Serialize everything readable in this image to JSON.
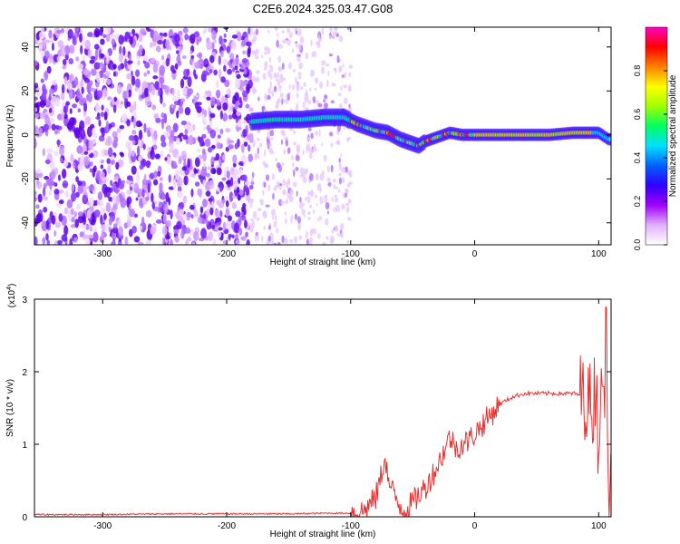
{
  "chart_data": [
    {
      "type": "heatmap",
      "title": "C2E6.2024.325.03.47.G08",
      "xlabel": "Height of straight line (km)",
      "ylabel": "Frequency (Hz)",
      "xlim": [
        -355,
        110
      ],
      "ylim": [
        -50,
        49
      ],
      "x_ticks": [
        "-300",
        "-200",
        "-100",
        "0",
        "100"
      ],
      "y_ticks": [
        "-40",
        "-20",
        "0",
        "20",
        "40"
      ],
      "colorbar": {
        "label": "Normalized spectral amplitude",
        "range": [
          0,
          1
        ],
        "ticks": [
          "0.0",
          "0.2",
          "0.4",
          "0.6",
          "0.8"
        ],
        "colors": [
          "#ffffff",
          "#e0b0ff",
          "#a000ff",
          "#3000ff",
          "#0060ff",
          "#00e0ff",
          "#00ff60",
          "#a0ff00",
          "#ffff00",
          "#ff8000",
          "#ff0000",
          "#ff00c0"
        ]
      },
      "ridge": {
        "x": [
          -180,
          -160,
          -140,
          -120,
          -105,
          -95,
          -80,
          -70,
          -60,
          -50,
          -45,
          -40,
          -30,
          -20,
          -10,
          0,
          20,
          40,
          60,
          80,
          100,
          108
        ],
        "y": [
          6,
          7,
          7,
          8,
          8,
          5,
          2,
          1,
          -2,
          -4,
          -5,
          -3,
          -1,
          1,
          0,
          0,
          0,
          0,
          0,
          1,
          1,
          -2
        ]
      },
      "noise_region": {
        "x": [
          -355,
          -180
        ],
        "y": [
          -50,
          49
        ]
      },
      "grid": false
    },
    {
      "type": "line",
      "xlabel": "Height of straight line (km)",
      "ylabel": "SNR (10 * v/v)",
      "y_multiplier": "(x10",
      "y_multiplier_exp": "4",
      "y_multiplier_close": ")",
      "xlim": [
        -355,
        110
      ],
      "ylim": [
        0,
        3
      ],
      "x_ticks": [
        "-300",
        "-200",
        "-100",
        "0",
        "100"
      ],
      "y_ticks": [
        "0",
        "1",
        "2",
        "3"
      ],
      "color": "#e83030",
      "series": [
        {
          "x": [
            -355,
            -300,
            -250,
            -200,
            -150,
            -120,
            -100,
            -90,
            -80,
            -75,
            -72,
            -70,
            -65,
            -60,
            -55,
            -50,
            -45,
            -40,
            -35,
            -30,
            -25,
            -20,
            -15,
            -10,
            -5,
            0,
            5,
            10,
            15,
            20,
            30,
            40,
            50,
            60,
            70,
            80,
            85,
            90,
            95,
            98,
            100,
            102,
            104,
            106,
            108,
            110
          ],
          "y": [
            0.03,
            0.03,
            0.04,
            0.04,
            0.04,
            0.05,
            0.05,
            0.08,
            0.25,
            0.6,
            0.85,
            0.5,
            0.3,
            0.15,
            0.1,
            0.2,
            0.3,
            0.4,
            0.55,
            0.7,
            0.9,
            1.1,
            0.95,
            1.0,
            1.05,
            1.15,
            1.25,
            1.35,
            1.45,
            1.55,
            1.65,
            1.7,
            1.7,
            1.7,
            1.7,
            1.7,
            1.68,
            1.65,
            1.5,
            1.9,
            0.8,
            2.4,
            1.1,
            2.9,
            0.3,
            1.5
          ]
        }
      ],
      "grid": false
    }
  ]
}
